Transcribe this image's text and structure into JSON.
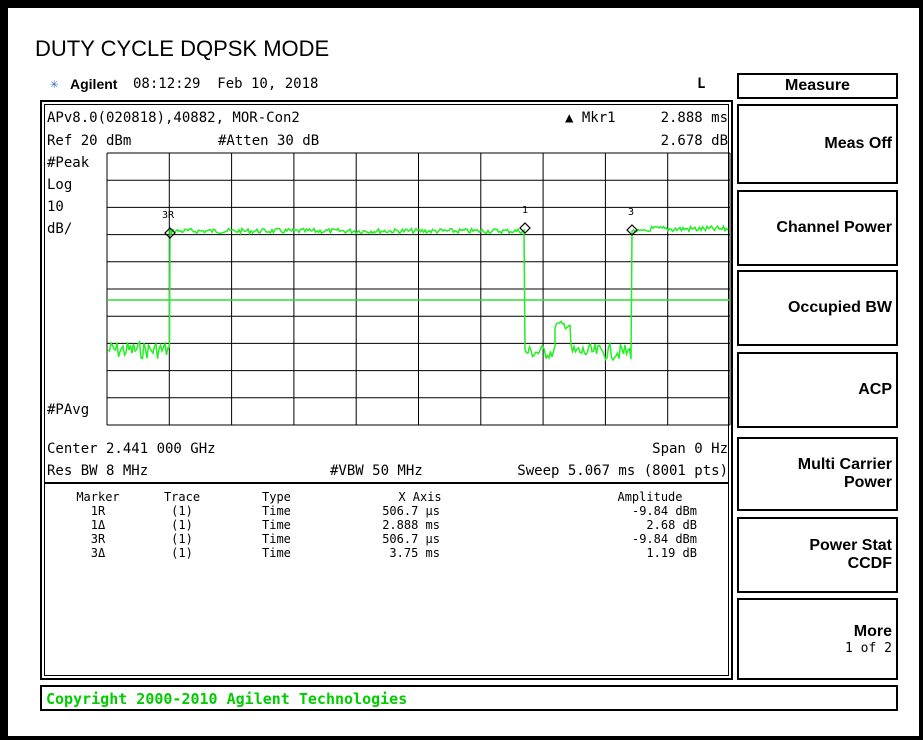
{
  "title": "DUTY CYCLE DQPSK MODE",
  "header": {
    "brand": "Agilent",
    "time": "08:12:29  Feb 10, 2018",
    "flag": "L"
  },
  "display": {
    "line1_left": "APv8.0(020818),40882, MOR-Con2",
    "marker_label": "▲ Mkr1",
    "marker_x": "2.888 ms",
    "ref": "Ref 20 dBm",
    "atten": "#Atten 30 dB",
    "marker_y": "2.678 dB",
    "detector": "#Peak",
    "scale_type": "Log",
    "scale_value": "10",
    "scale_unit": "dB/",
    "average": "#PAvg",
    "trace_markers": [
      "3R",
      "1",
      "3"
    ],
    "center": "Center 2.441 000 GHz",
    "span": "Span 0 Hz",
    "rbw": "Res BW 8 MHz",
    "vbw": "#VBW 50 MHz",
    "sweep": "Sweep 5.067 ms (8001 pts)"
  },
  "table": {
    "header": [
      "Marker",
      "Trace",
      "Type",
      "X Axis",
      "Amplitude"
    ],
    "rows": [
      [
        "1R",
        "(1)",
        "Time",
        "506.7 µs",
        "-9.84 dBm"
      ],
      [
        "1Δ",
        "(1)",
        "Time",
        "2.888 ms",
        "2.68 dB"
      ],
      [
        "3R",
        "(1)",
        "Time",
        "506.7 µs",
        "-9.84 dBm"
      ],
      [
        "3Δ",
        "(1)",
        "Time",
        "3.75 ms",
        "1.19 dB"
      ]
    ]
  },
  "menu": {
    "title": "Measure",
    "softkeys": [
      {
        "lines": [
          "Meas Off"
        ]
      },
      {
        "lines": [
          "Channel Power"
        ]
      },
      {
        "lines": [
          "Occupied BW"
        ]
      },
      {
        "lines": [
          "ACP"
        ]
      },
      {
        "lines": [
          "Multi Carrier",
          "Power"
        ]
      },
      {
        "lines": [
          "Power Stat",
          "CCDF"
        ]
      },
      {
        "lines": [
          "More"
        ],
        "sub": "1 of 2"
      }
    ]
  },
  "copyright": "Copyright 2000-2010 Agilent Technologies"
}
